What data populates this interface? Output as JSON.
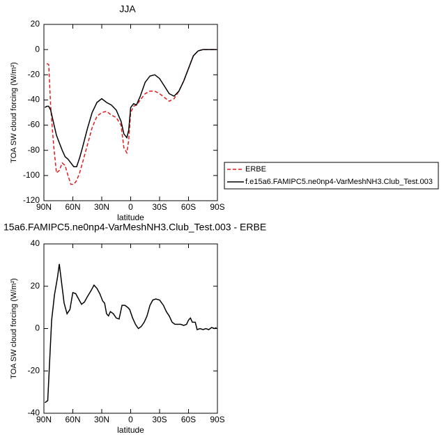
{
  "chart_data": [
    {
      "type": "line",
      "title": "JJA",
      "xlabel": "latitude",
      "ylabel": "TOA SW cloud forcing (W/m²)",
      "xlim": [
        90,
        -90
      ],
      "ylim": [
        -120,
        20
      ],
      "xticks": [
        {
          "value": 90,
          "label": "90N"
        },
        {
          "value": 60,
          "label": "60N"
        },
        {
          "value": 30,
          "label": "30N"
        },
        0,
        {
          "value": -30,
          "label": "30S"
        },
        {
          "value": -60,
          "label": "60S"
        },
        {
          "value": -90,
          "label": "90S"
        }
      ],
      "yticks": [
        20,
        0,
        -20,
        -40,
        -60,
        -80,
        -100,
        -120
      ],
      "legend": "right",
      "x": [
        89,
        87,
        85,
        83,
        80,
        77,
        74,
        71,
        68,
        65,
        62,
        59,
        56,
        53,
        50,
        45,
        40,
        35,
        30,
        25,
        20,
        15,
        10,
        7,
        4,
        2,
        0,
        -3,
        -6,
        -10,
        -15,
        -20,
        -25,
        -30,
        -35,
        -40,
        -45,
        -50,
        -55,
        -60,
        -65,
        -70,
        -75,
        -80,
        -85,
        -89
      ],
      "series": [
        {
          "name": "ERBE",
          "color": "#e41a1c",
          "dashed": true,
          "values": [
            null,
            -11,
            -12,
            -45,
            -75,
            -98,
            -96,
            -90,
            -92,
            -100,
            -107,
            -107,
            -104,
            -98,
            -90,
            -76,
            -62,
            -53,
            -50,
            -49,
            -52,
            -54,
            -60,
            -78,
            -82,
            -72,
            -50,
            -45,
            -44,
            -40,
            -35,
            -33,
            -33,
            -35,
            -38,
            -41,
            -39,
            -33,
            -25,
            -15,
            -5,
            -1,
            0,
            0,
            0,
            0
          ]
        },
        {
          "name": "f.e15a6.FAMIPC5.ne0np4-VarMeshNH3.Club_Test.003",
          "color": "#000000",
          "dashed": false,
          "values": [
            -46,
            -45,
            -45,
            -48,
            -58,
            -68,
            -74,
            -80,
            -85,
            -87,
            -90,
            -93,
            -93,
            -86,
            -78,
            -63,
            -50,
            -42,
            -39,
            -42,
            -44,
            -48,
            -57,
            -67,
            -70,
            -64,
            -46,
            -43,
            -44,
            -37,
            -26,
            -21,
            -20,
            -23,
            -29,
            -35,
            -37,
            -33,
            -25,
            -15,
            -5,
            -1,
            0,
            0,
            0,
            0
          ]
        }
      ]
    },
    {
      "type": "line",
      "title": "15a6.FAMIPC5.ne0np4-VarMeshNH3.Club_Test.003 - ERBE",
      "xlabel": "latitude",
      "ylabel": "TOA SW cloud forcing (W/m²)",
      "xlim": [
        90,
        -90
      ],
      "ylim": [
        -40,
        40
      ],
      "xticks": [
        {
          "value": 90,
          "label": "90N"
        },
        {
          "value": 60,
          "label": "60N"
        },
        {
          "value": 30,
          "label": "30N"
        },
        0,
        {
          "value": -30,
          "label": "30S"
        },
        {
          "value": -60,
          "label": "60S"
        },
        {
          "value": -90,
          "label": "90S"
        }
      ],
      "yticks": [
        40,
        20,
        0,
        -20,
        -40
      ],
      "x": [
        89,
        86,
        82,
        79,
        76,
        74,
        72,
        69,
        66,
        63,
        60,
        57,
        54,
        51,
        48,
        45,
        41,
        38,
        35,
        32,
        29,
        27,
        25,
        23,
        21,
        18,
        15,
        12,
        9,
        6,
        3,
        1,
        -2,
        -5,
        -8,
        -11,
        -14,
        -17,
        -20,
        -23,
        -26,
        -30,
        -34,
        -37,
        -40,
        -43,
        -46,
        -49,
        -52,
        -55,
        -58,
        -60,
        -62,
        -64,
        -67,
        -69,
        -72,
        -75,
        -78,
        -81,
        -84,
        -87,
        -89
      ],
      "series": [
        {
          "color": "#000000",
          "dashed": false,
          "values": [
            -35,
            -34,
            4,
            16,
            24,
            30.5,
            23,
            12,
            7,
            9,
            17,
            16.5,
            14,
            11.5,
            12.5,
            15,
            18,
            20.5,
            19,
            16.5,
            13,
            12,
            7,
            6,
            8,
            7,
            5,
            4.5,
            11,
            11,
            10,
            9,
            5,
            2,
            0,
            1,
            3,
            6,
            11,
            13.5,
            14,
            13.5,
            11,
            8,
            6,
            3,
            2,
            2,
            2,
            1.5,
            2,
            4,
            5,
            3,
            3,
            -0.5,
            0,
            -0.5,
            0,
            -0.5,
            0.5,
            0,
            0.5
          ]
        }
      ]
    }
  ]
}
